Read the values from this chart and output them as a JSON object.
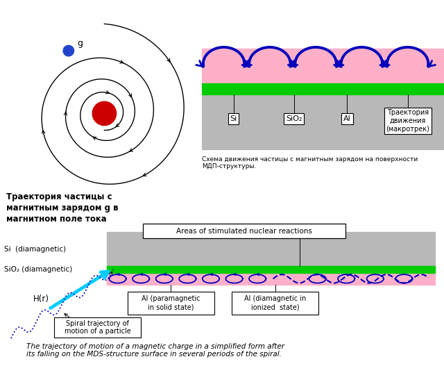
{
  "bg_color": "#ffffff",
  "title_spiral": "Траектория частицы с\nмагнитным зарядом g в\nмагнитном поле тока",
  "caption_top_right": "Схема движения частицы с магнитным зарядом на поверхности\nМДП-структуры.",
  "caption_bottom": "The trajectory of motion of a magnetic charge in a simplified form after\nits falling on the MDS-structure surface in several periods of the spiral.",
  "label_si_top": "Si",
  "label_sio2_top": "SiO₂",
  "label_al_top": "Al",
  "label_traj": "Траектория\nдвижения\n(макротрек)",
  "label_si_bot": "Si  (diamagnetic)",
  "label_sio2_bot": "SiO₂ (diamagnetic)",
  "label_hr": "H(r)",
  "label_al_para": "Al (paramagnetic\nin solid state)",
  "label_al_dia": "Al (diamagnetic in\nionized  state)",
  "label_spiral": "Spiral trajectory of\nmotion of a particle",
  "label_areas": "Areas of stimulated nuclear reactions",
  "colors": {
    "pink": "#ffb0c8",
    "green": "#00cc00",
    "gray": "#b8b8b8",
    "blue_arrow": "#0000bb",
    "cyan_arrow": "#00ccff",
    "red_dot": "#cc0000",
    "blue_dot": "#2244cc",
    "black": "#000000",
    "white": "#ffffff"
  }
}
